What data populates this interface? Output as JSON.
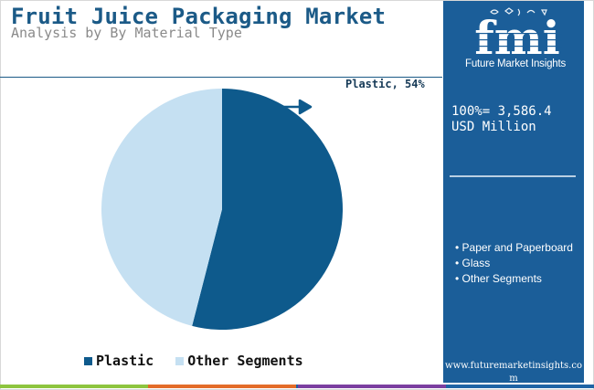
{
  "header": {
    "title": "Fruit Juice Packaging Market",
    "subtitle": "Analysis by By Material Type"
  },
  "chart_data": {
    "type": "pie",
    "categories": [
      "Plastic",
      "Other Segments"
    ],
    "values": [
      54,
      46
    ],
    "unit": "%",
    "colors": [
      "#0e5a8c",
      "#c5e0f2"
    ],
    "slice_labels": [
      "Plastic, 54%"
    ],
    "legend": [
      "Plastic",
      "Other Segments"
    ],
    "legend_position": "bottom"
  },
  "side_panel": {
    "logo_letters": "fmi",
    "logo_caption": "Future Market Insights",
    "total_line1": "100%= 3,586.4",
    "total_line2": "USD Million",
    "segments": [
      "• Paper and Paperboard",
      "• Glass",
      "• Other Segments"
    ],
    "website": "www.futuremarketinsights.com"
  },
  "colors": {
    "title": "#1b5a87",
    "panel": "#1b5e99",
    "footer_bars": [
      "#8dc53f",
      "#e36c29",
      "#1f64a5",
      "#7b3fa0",
      "#1f64a5"
    ]
  }
}
